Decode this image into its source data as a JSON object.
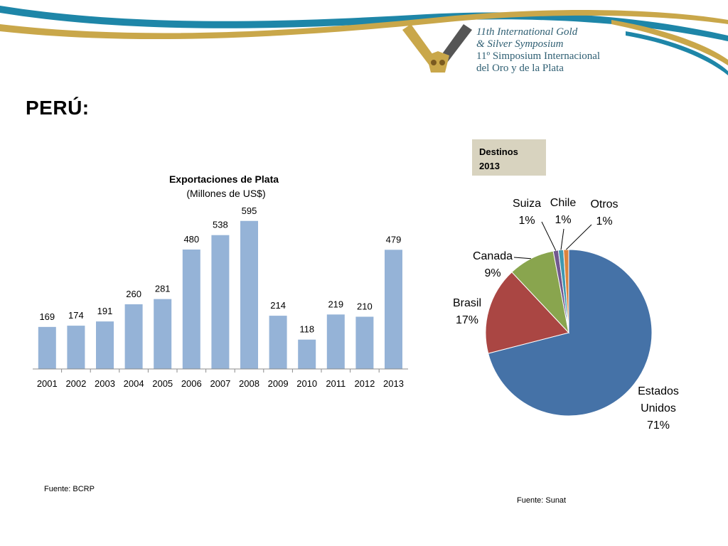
{
  "header": {
    "logo_line1": "11th International Gold",
    "logo_line2": "& Silver Symposium",
    "logo_line3": "11º Simposium Internacional",
    "logo_line4": "del Oro y de la Plata"
  },
  "page_title": "PERÚ:",
  "destinations_box": {
    "line1": "Destinos",
    "line2": "2013"
  },
  "sources": {
    "left": "Fuente: BCRP",
    "right": "Fuente: Sunat"
  },
  "colors": {
    "bar": "#95b3d7",
    "estados_unidos": "#4572a7",
    "brasil": "#aa4643",
    "canada": "#89a54e",
    "suiza": "#71588f",
    "chile": "#4198af",
    "otros": "#db843d",
    "deco_blue": "#1e86a8",
    "deco_gold": "#c9a74a"
  },
  "chart_data": [
    {
      "type": "bar",
      "title": "Exportaciones de Plata",
      "subtitle": "(Millones de US$)",
      "categories": [
        "2001",
        "2002",
        "2003",
        "2004",
        "2005",
        "2006",
        "2007",
        "2008",
        "2009",
        "2010",
        "2011",
        "2012",
        "2013"
      ],
      "values": [
        169,
        174,
        191,
        260,
        281,
        480,
        538,
        595,
        214,
        118,
        219,
        210,
        479
      ],
      "ylim": [
        0,
        640
      ],
      "grid": false
    },
    {
      "type": "pie",
      "slices": [
        {
          "label": "Estados Unidos",
          "pct_label": "71%",
          "value": 71,
          "color_key": "estados_unidos"
        },
        {
          "label": "Brasil",
          "pct_label": "17%",
          "value": 17,
          "color_key": "brasil"
        },
        {
          "label": "Canada",
          "pct_label": "9%",
          "value": 9,
          "color_key": "canada"
        },
        {
          "label": "Suiza",
          "pct_label": "1%",
          "value": 1,
          "color_key": "suiza"
        },
        {
          "label": "Chile",
          "pct_label": "1%",
          "value": 1,
          "color_key": "chile"
        },
        {
          "label": "Otros",
          "pct_label": "1%",
          "value": 1,
          "color_key": "otros"
        }
      ]
    }
  ]
}
